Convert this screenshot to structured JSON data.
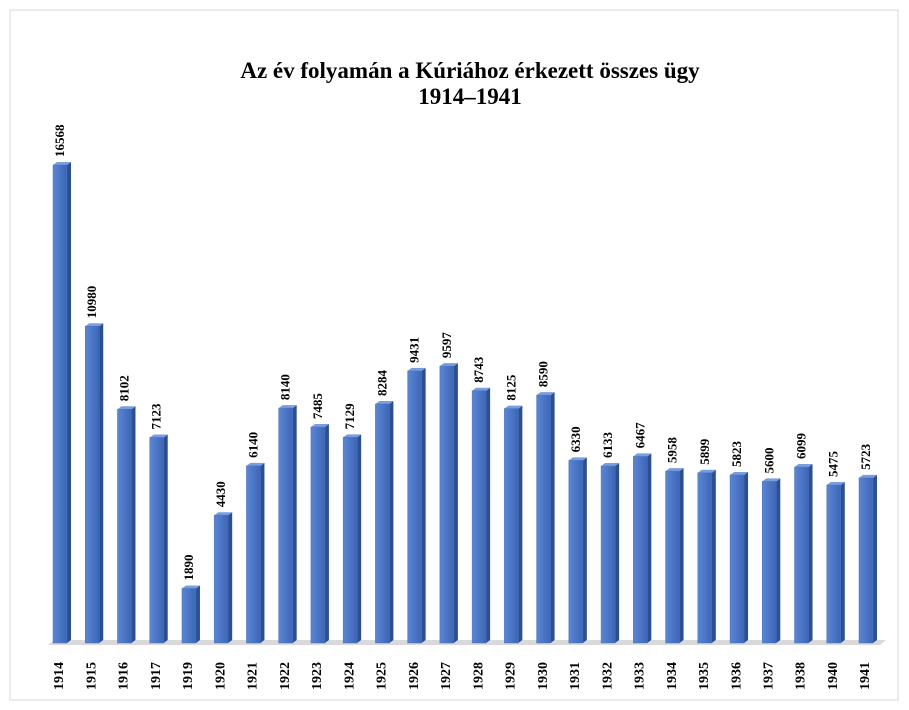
{
  "chart_data": {
    "type": "bar",
    "title": "Az év folyamán a Kúriához érkezett összes ügy",
    "subtitle": "1914–1941",
    "categories": [
      "1914",
      "1915",
      "1916",
      "1917",
      "1919",
      "1920",
      "1921",
      "1922",
      "1923",
      "1924",
      "1925",
      "1926",
      "1927",
      "1928",
      "1929",
      "1930",
      "1931",
      "1932",
      "1933",
      "1934",
      "1935",
      "1936",
      "1937",
      "1938",
      "1940",
      "1941"
    ],
    "values": [
      16568,
      10980,
      8102,
      7123,
      1890,
      4430,
      6140,
      8140,
      7485,
      7129,
      8284,
      9431,
      9597,
      8743,
      8125,
      8590,
      6330,
      6133,
      6467,
      5958,
      5899,
      5823,
      5600,
      6099,
      5475,
      5723
    ],
    "color": "#4472c4"
  }
}
